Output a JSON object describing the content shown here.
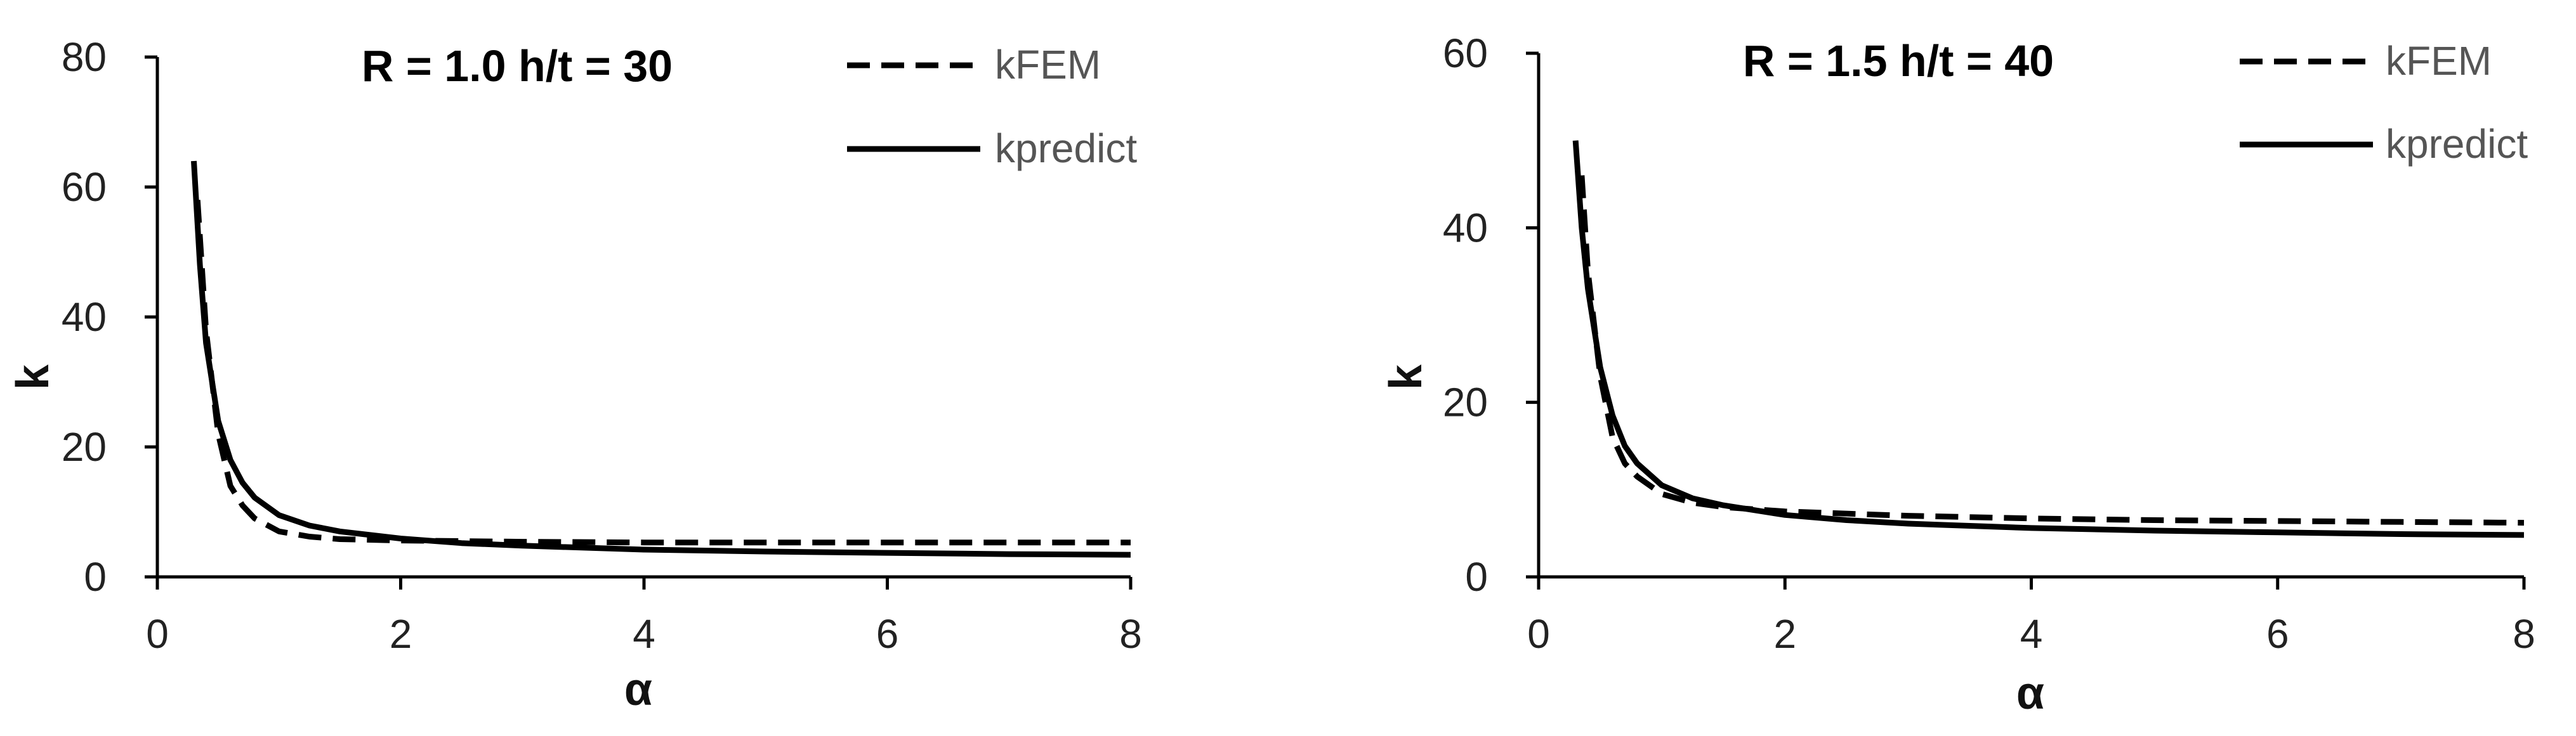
{
  "chart_data": [
    {
      "type": "line",
      "title": "R = 1.0 h/t = 30",
      "xlabel": "α",
      "ylabel": "k",
      "xlim": [
        0,
        8
      ],
      "ylim": [
        0,
        80
      ],
      "xticks": [
        0,
        2,
        4,
        6,
        8
      ],
      "yticks": [
        0,
        20,
        40,
        60,
        80
      ],
      "grid": false,
      "legend_position": "top-right",
      "series": [
        {
          "name": "kFEM",
          "style": "dashed",
          "color": "#000000",
          "x": [
            0.33,
            0.4,
            0.5,
            0.6,
            0.7,
            0.8,
            1.0,
            1.25,
            1.5,
            2.0,
            3.0,
            4.0,
            5.0,
            6.0,
            7.0,
            8.0
          ],
          "y": [
            58,
            38,
            22,
            14,
            11,
            9,
            7,
            6.2,
            5.8,
            5.6,
            5.4,
            5.3,
            5.3,
            5.3,
            5.3,
            5.3
          ]
        },
        {
          "name": "kpredict",
          "style": "solid",
          "color": "#000000",
          "x": [
            0.3,
            0.35,
            0.4,
            0.5,
            0.6,
            0.7,
            0.8,
            1.0,
            1.25,
            1.5,
            2.0,
            2.5,
            3.0,
            4.0,
            5.0,
            6.0,
            7.0,
            8.0
          ],
          "y": [
            64,
            48,
            36,
            24,
            18,
            14.5,
            12.2,
            9.5,
            7.9,
            7.0,
            5.9,
            5.2,
            4.8,
            4.2,
            3.9,
            3.7,
            3.5,
            3.4
          ]
        }
      ]
    },
    {
      "type": "line",
      "title": "R = 1.5 h/t = 40",
      "xlabel": "α",
      "ylabel": "k",
      "xlim": [
        0,
        8
      ],
      "ylim": [
        0,
        60
      ],
      "xticks": [
        0,
        2,
        4,
        6,
        8
      ],
      "yticks": [
        0,
        20,
        40,
        60
      ],
      "grid": false,
      "legend_position": "top-right",
      "series": [
        {
          "name": "kFEM",
          "style": "dashed",
          "color": "#000000",
          "x": [
            0.35,
            0.4,
            0.5,
            0.6,
            0.7,
            0.8,
            1.0,
            1.25,
            1.5,
            2.0,
            3.0,
            4.0,
            5.0,
            6.0,
            7.0,
            8.0
          ],
          "y": [
            46,
            35,
            23,
            16,
            13,
            11.5,
            9.5,
            8.5,
            8.0,
            7.5,
            7.0,
            6.7,
            6.5,
            6.4,
            6.3,
            6.2
          ]
        },
        {
          "name": "kpredict",
          "style": "solid",
          "color": "#000000",
          "x": [
            0.3,
            0.35,
            0.4,
            0.5,
            0.6,
            0.7,
            0.8,
            1.0,
            1.25,
            1.5,
            2.0,
            2.5,
            3.0,
            4.0,
            5.0,
            6.0,
            7.0,
            8.0
          ],
          "y": [
            50,
            40,
            33,
            24,
            18.5,
            15,
            13,
            10.5,
            9.0,
            8.2,
            7.1,
            6.5,
            6.1,
            5.6,
            5.3,
            5.1,
            4.9,
            4.8
          ]
        }
      ]
    }
  ]
}
